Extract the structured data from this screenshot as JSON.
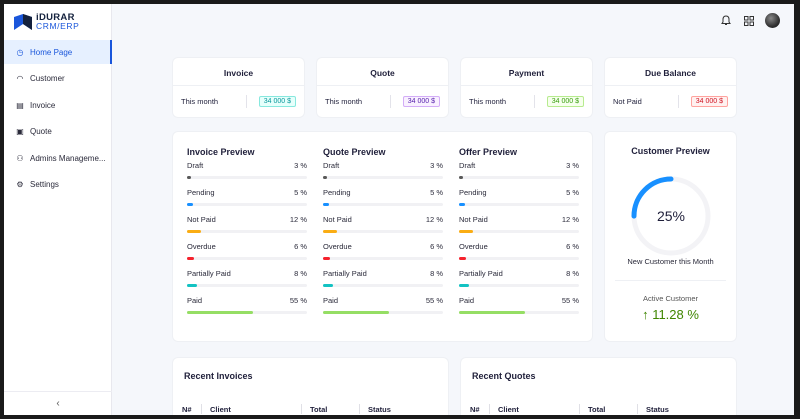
{
  "brand": {
    "title": "iDURAR",
    "subtitle": "CRM/ERP",
    "color": "#1a56db"
  },
  "sidebar": {
    "items": [
      {
        "label": "Home Page",
        "icon": "dashboard-icon",
        "active": true
      },
      {
        "label": "Customer",
        "icon": "headset-icon",
        "active": false
      },
      {
        "label": "Invoice",
        "icon": "file-text-icon",
        "active": false
      },
      {
        "label": "Quote",
        "icon": "file-sync-icon",
        "active": false
      },
      {
        "label": "Admins Manageme...",
        "icon": "team-icon",
        "active": false
      },
      {
        "label": "Settings",
        "icon": "gear-icon",
        "active": false
      }
    ],
    "collapse_icon": "chevron-left-icon"
  },
  "header": {
    "icons": [
      "bell-icon",
      "apps-icon",
      "avatar"
    ]
  },
  "stats": [
    {
      "title": "Invoice",
      "period": "This month",
      "value": "34 000 $",
      "tone": "cyan"
    },
    {
      "title": "Quote",
      "period": "This month",
      "value": "34 000 $",
      "tone": "purple"
    },
    {
      "title": "Payment",
      "period": "This month",
      "value": "34 000 $",
      "tone": "green"
    },
    {
      "title": "Due Balance",
      "period": "Not Paid",
      "value": "34 000 $",
      "tone": "red"
    }
  ],
  "previews": [
    {
      "title": "Invoice Preview",
      "rows": [
        {
          "label": "Draft",
          "value": "3 %",
          "pct": 3,
          "color": "#595959"
        },
        {
          "label": "Pending",
          "value": "5 %",
          "pct": 5,
          "color": "#1890ff"
        },
        {
          "label": "Not Paid",
          "value": "12 %",
          "pct": 12,
          "color": "#faad14"
        },
        {
          "label": "Overdue",
          "value": "6 %",
          "pct": 6,
          "color": "#f5222d"
        },
        {
          "label": "Partially Paid",
          "value": "8 %",
          "pct": 8,
          "color": "#13c2c2"
        },
        {
          "label": "Paid",
          "value": "55 %",
          "pct": 55,
          "color": "#95de64"
        }
      ]
    },
    {
      "title": "Quote Preview",
      "rows": [
        {
          "label": "Draft",
          "value": "3 %",
          "pct": 3,
          "color": "#595959"
        },
        {
          "label": "Pending",
          "value": "5 %",
          "pct": 5,
          "color": "#1890ff"
        },
        {
          "label": "Not Paid",
          "value": "12 %",
          "pct": 12,
          "color": "#faad14"
        },
        {
          "label": "Overdue",
          "value": "6 %",
          "pct": 6,
          "color": "#f5222d"
        },
        {
          "label": "Partially Paid",
          "value": "8 %",
          "pct": 8,
          "color": "#13c2c2"
        },
        {
          "label": "Paid",
          "value": "55 %",
          "pct": 55,
          "color": "#95de64"
        }
      ]
    },
    {
      "title": "Offer Preview",
      "rows": [
        {
          "label": "Draft",
          "value": "3 %",
          "pct": 3,
          "color": "#595959"
        },
        {
          "label": "Pending",
          "value": "5 %",
          "pct": 5,
          "color": "#1890ff"
        },
        {
          "label": "Not Paid",
          "value": "12 %",
          "pct": 12,
          "color": "#faad14"
        },
        {
          "label": "Overdue",
          "value": "6 %",
          "pct": 6,
          "color": "#f5222d"
        },
        {
          "label": "Partially Paid",
          "value": "8 %",
          "pct": 8,
          "color": "#13c2c2"
        },
        {
          "label": "Paid",
          "value": "55 %",
          "pct": 55,
          "color": "#95de64"
        }
      ]
    }
  ],
  "customer": {
    "title": "Customer Preview",
    "percent_label": "25%",
    "percent": 25,
    "subtitle": "New Customer this Month",
    "active_label": "Active Customer",
    "active_value": "11.28 %",
    "gauge_color": "#1890ff"
  },
  "recent_invoices": {
    "title": "Recent Invoices",
    "columns": [
      "N#",
      "Client",
      "Total",
      "Status"
    ]
  },
  "recent_quotes": {
    "title": "Recent Quotes",
    "columns": [
      "N#",
      "Client",
      "Total",
      "Status"
    ]
  }
}
